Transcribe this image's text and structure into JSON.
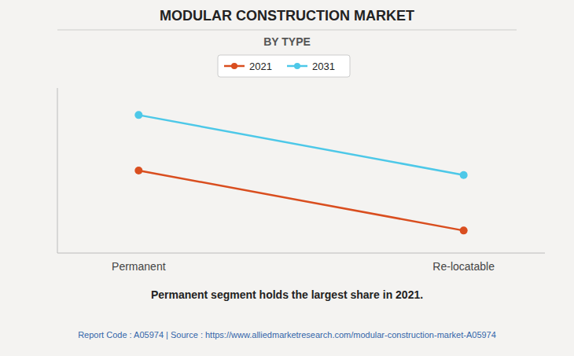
{
  "chart_data": {
    "type": "line",
    "title": "MODULAR CONSTRUCTION MARKET",
    "subtitle": "BY TYPE",
    "categories": [
      "Permanent",
      "Re-locatable"
    ],
    "series": [
      {
        "name": "2021",
        "color": "#D94E1F",
        "marker": "circle",
        "values": [
          0.55,
          0.15
        ]
      },
      {
        "name": "2031",
        "color": "#4DC8E8",
        "marker": "circle",
        "values": [
          0.92,
          0.52
        ]
      }
    ],
    "ylim": [
      0.0,
      1.1
    ],
    "grid": false,
    "tick_labels": "x",
    "legend": "top",
    "annotations": [
      "Permanent segment holds the largest share in 2021.",
      "Report Code : A05974  |  Source : https://www.alliedmarketresearch.com/modular-construction-market-A05974"
    ]
  }
}
